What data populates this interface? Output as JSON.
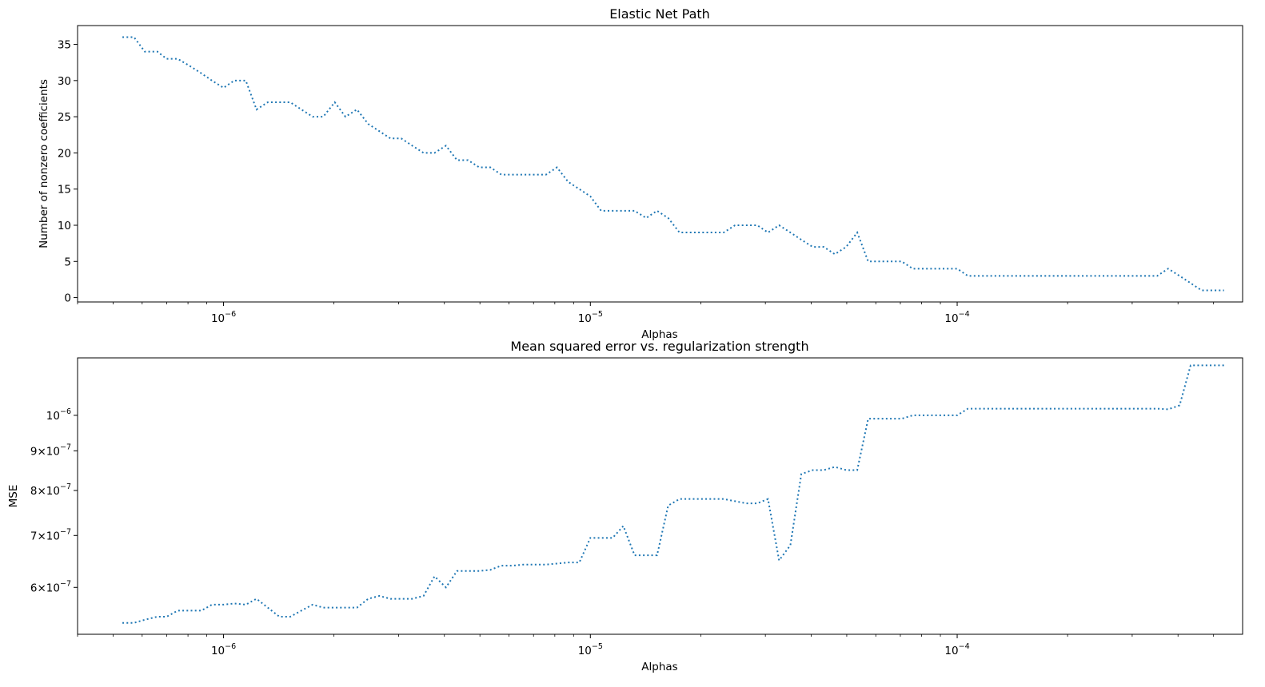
{
  "chart_data": [
    {
      "type": "line",
      "title": "Elastic Net Path",
      "xlabel": "Alphas",
      "ylabel": "Number of nonzero coefficients",
      "xscale": "log",
      "yscale": "linear",
      "xlim": [
        4e-07,
        0.0006
      ],
      "ylim": [
        -0.6,
        37.6
      ],
      "x_ticks_major": [
        {
          "value": 1e-06,
          "mantissa": "10",
          "exponent": "−6"
        },
        {
          "value": 1e-05,
          "mantissa": "10",
          "exponent": "−5"
        },
        {
          "value": 0.0001,
          "mantissa": "10",
          "exponent": "−4"
        }
      ],
      "y_ticks": [
        {
          "value": 0,
          "label": "0"
        },
        {
          "value": 5,
          "label": "5"
        },
        {
          "value": 10,
          "label": "10"
        },
        {
          "value": 15,
          "label": "15"
        },
        {
          "value": 20,
          "label": "20"
        },
        {
          "value": 25,
          "label": "25"
        },
        {
          "value": 30,
          "label": "30"
        },
        {
          "value": 35,
          "label": "35"
        }
      ],
      "line_color": "#1f77b4",
      "line_style": "dotted",
      "grid": false,
      "series": [
        {
          "x": [
            5.3e-07,
            5.7e-07,
            6.1e-07,
            6.6e-07,
            7e-07,
            7.5e-07,
            8.1e-07,
            8.7e-07,
            9.3e-07,
            1e-06,
            1.07e-06,
            1.15e-06,
            1.23e-06,
            1.32e-06,
            1.42e-06,
            1.52e-06,
            1.63e-06,
            1.75e-06,
            1.87e-06,
            2.01e-06,
            2.15e-06,
            2.31e-06,
            2.48e-06,
            2.66e-06,
            2.85e-06,
            3.05e-06,
            3.27e-06,
            3.51e-06,
            3.76e-06,
            4.04e-06,
            4.33e-06,
            4.64e-06,
            4.98e-06,
            5.34e-06,
            5.72e-06,
            6.14e-06,
            6.58e-06,
            7.06e-06,
            7.57e-06,
            8.11e-06,
            8.7e-06,
            9.33e-06,
            1e-05,
            1.07e-05,
            1.15e-05,
            1.23e-05,
            1.32e-05,
            1.42e-05,
            1.52e-05,
            1.63e-05,
            1.75e-05,
            1.87e-05,
            2.01e-05,
            2.15e-05,
            2.31e-05,
            2.48e-05,
            2.66e-05,
            2.85e-05,
            3.05e-05,
            3.27e-05,
            3.51e-05,
            3.76e-05,
            4.04e-05,
            4.33e-05,
            4.64e-05,
            4.98e-05,
            5.34e-05,
            5.72e-05,
            6.14e-05,
            6.58e-05,
            7.06e-05,
            7.57e-05,
            8.11e-05,
            8.7e-05,
            9.33e-05,
            0.0001,
            0.000107,
            0.000115,
            0.000123,
            0.000132,
            0.000142,
            0.000152,
            0.000163,
            0.000175,
            0.000187,
            0.000201,
            0.000215,
            0.000231,
            0.000248,
            0.000266,
            0.000285,
            0.000305,
            0.000327,
            0.000351,
            0.000376,
            0.000404,
            0.000433,
            0.000464,
            0.000498,
            0.000534
          ],
          "y": [
            36,
            36,
            34,
            34,
            33,
            33,
            32,
            31,
            30,
            29,
            30,
            30,
            26,
            27,
            27,
            27,
            26,
            25,
            25,
            27,
            25,
            26,
            24,
            23,
            22,
            22,
            21,
            20,
            20,
            21,
            19,
            19,
            18,
            18,
            17,
            17,
            17,
            17,
            17,
            18,
            16,
            15,
            14,
            12,
            12,
            12,
            12,
            11,
            12,
            11,
            9,
            9,
            9,
            9,
            9,
            10,
            10,
            10,
            9,
            10,
            9,
            8,
            7,
            7,
            6,
            7,
            9,
            5,
            5,
            5,
            5,
            4,
            4,
            4,
            4,
            4,
            3,
            3,
            3,
            3,
            3,
            3,
            3,
            3,
            3,
            3,
            3,
            3,
            3,
            3,
            3,
            3,
            3,
            3,
            4,
            3,
            2,
            1,
            1,
            1
          ]
        }
      ]
    },
    {
      "type": "line",
      "title": "Mean squared error vs. regularization strength",
      "xlabel": "Alphas",
      "ylabel": "MSE",
      "xscale": "log",
      "yscale": "log",
      "xlim": [
        4e-07,
        0.0006
      ],
      "ylim": [
        5.22e-07,
        1.186e-06
      ],
      "x_ticks_major": [
        {
          "value": 1e-06,
          "mantissa": "10",
          "exponent": "−6"
        },
        {
          "value": 1e-05,
          "mantissa": "10",
          "exponent": "−5"
        },
        {
          "value": 0.0001,
          "mantissa": "10",
          "exponent": "−4"
        }
      ],
      "y_ticks": [
        {
          "value": 6e-07,
          "coef": "6",
          "times": "×",
          "mantissa": "10",
          "exponent": "−7"
        },
        {
          "value": 7e-07,
          "coef": "7",
          "times": "×",
          "mantissa": "10",
          "exponent": "−7"
        },
        {
          "value": 8e-07,
          "coef": "8",
          "times": "×",
          "mantissa": "10",
          "exponent": "−7"
        },
        {
          "value": 9e-07,
          "coef": "9",
          "times": "×",
          "mantissa": "10",
          "exponent": "−7"
        },
        {
          "value": 1e-06,
          "coef": "",
          "times": "",
          "mantissa": "10",
          "exponent": "−6"
        }
      ],
      "line_color": "#1f77b4",
      "line_style": "dotted",
      "grid": false,
      "series": [
        {
          "x": [
            5.3e-07,
            5.7e-07,
            6.1e-07,
            6.6e-07,
            7e-07,
            7.5e-07,
            8.1e-07,
            8.7e-07,
            9.3e-07,
            1e-06,
            1.07e-06,
            1.15e-06,
            1.23e-06,
            1.32e-06,
            1.42e-06,
            1.52e-06,
            1.63e-06,
            1.75e-06,
            1.87e-06,
            2.01e-06,
            2.15e-06,
            2.31e-06,
            2.48e-06,
            2.66e-06,
            2.85e-06,
            3.05e-06,
            3.27e-06,
            3.51e-06,
            3.76e-06,
            4.04e-06,
            4.33e-06,
            4.64e-06,
            4.98e-06,
            5.34e-06,
            5.72e-06,
            6.14e-06,
            6.58e-06,
            7.06e-06,
            7.57e-06,
            8.11e-06,
            8.7e-06,
            9.33e-06,
            1e-05,
            1.07e-05,
            1.15e-05,
            1.23e-05,
            1.32e-05,
            1.42e-05,
            1.52e-05,
            1.63e-05,
            1.75e-05,
            1.87e-05,
            2.01e-05,
            2.15e-05,
            2.31e-05,
            2.48e-05,
            2.66e-05,
            2.85e-05,
            3.05e-05,
            3.27e-05,
            3.51e-05,
            3.76e-05,
            4.04e-05,
            4.33e-05,
            4.64e-05,
            4.98e-05,
            5.34e-05,
            5.72e-05,
            6.14e-05,
            6.58e-05,
            7.06e-05,
            7.57e-05,
            8.11e-05,
            8.7e-05,
            9.33e-05,
            0.0001,
            0.000107,
            0.000115,
            0.000123,
            0.000132,
            0.000142,
            0.000152,
            0.000163,
            0.000175,
            0.000187,
            0.000201,
            0.000215,
            0.000231,
            0.000248,
            0.000266,
            0.000285,
            0.000305,
            0.000327,
            0.000351,
            0.000376,
            0.000404,
            0.000433,
            0.000464,
            0.000498,
            0.000534
          ],
          "y": [
            5.4e-07,
            5.4e-07,
            5.45e-07,
            5.5e-07,
            5.5e-07,
            5.6e-07,
            5.6e-07,
            5.6e-07,
            5.7e-07,
            5.7e-07,
            5.72e-07,
            5.7e-07,
            5.8e-07,
            5.65e-07,
            5.5e-07,
            5.5e-07,
            5.6e-07,
            5.7e-07,
            5.65e-07,
            5.65e-07,
            5.65e-07,
            5.65e-07,
            5.8e-07,
            5.85e-07,
            5.8e-07,
            5.8e-07,
            5.8e-07,
            5.85e-07,
            6.2e-07,
            6e-07,
            6.3e-07,
            6.3e-07,
            6.3e-07,
            6.32e-07,
            6.4e-07,
            6.4e-07,
            6.42e-07,
            6.42e-07,
            6.42e-07,
            6.44e-07,
            6.46e-07,
            6.46e-07,
            6.95e-07,
            6.95e-07,
            6.95e-07,
            7.2e-07,
            6.6e-07,
            6.6e-07,
            6.6e-07,
            7.65e-07,
            7.8e-07,
            7.8e-07,
            7.8e-07,
            7.8e-07,
            7.8e-07,
            7.75e-07,
            7.7e-07,
            7.7e-07,
            7.8e-07,
            6.5e-07,
            6.8e-07,
            8.4e-07,
            8.5e-07,
            8.5e-07,
            8.58e-07,
            8.5e-07,
            8.5e-07,
            9.9e-07,
            9.9e-07,
            9.9e-07,
            9.9e-07,
            1e-06,
            1e-06,
            1e-06,
            1e-06,
            1e-06,
            1.02e-06,
            1.02e-06,
            1.02e-06,
            1.02e-06,
            1.02e-06,
            1.02e-06,
            1.02e-06,
            1.02e-06,
            1.02e-06,
            1.02e-06,
            1.02e-06,
            1.02e-06,
            1.02e-06,
            1.02e-06,
            1.02e-06,
            1.02e-06,
            1.02e-06,
            1.02e-06,
            1.018e-06,
            1.03e-06,
            1.16e-06,
            1.16e-06,
            1.16e-06,
            1.16e-06
          ]
        }
      ]
    }
  ]
}
